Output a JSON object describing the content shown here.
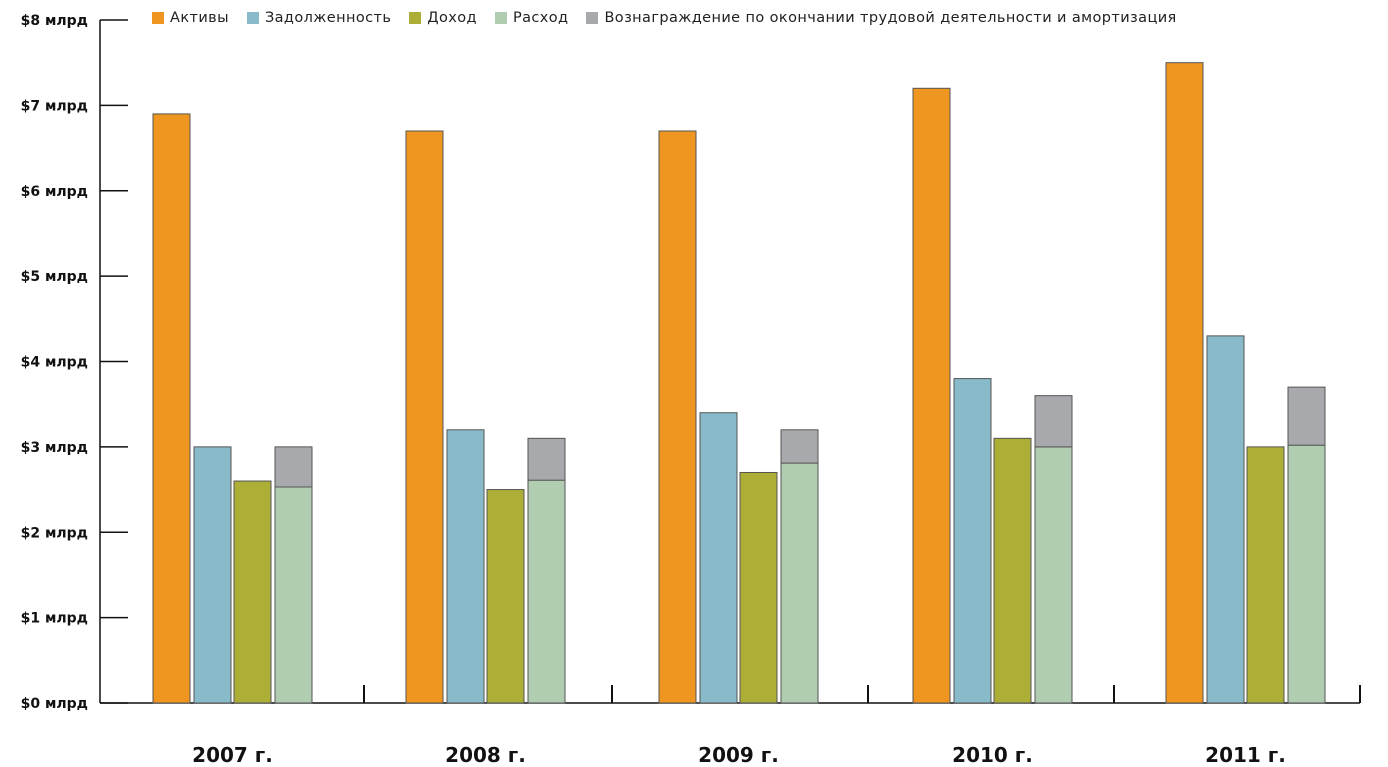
{
  "chart_data": {
    "type": "bar",
    "title": "",
    "xlabel": "",
    "ylabel": "",
    "categories": [
      "2007 г.",
      "2008 г.",
      "2009 г.",
      "2010 г.",
      "2011 г."
    ],
    "ylim": [
      0,
      8
    ],
    "yticks": [
      "$0 млрд",
      "$1 млрд",
      "$2 млрд",
      "$3 млрд",
      "$4 млрд",
      "$5 млрд",
      "$6 млрд",
      "$7 млрд",
      "$8 млрд"
    ],
    "legend_position": "top",
    "grid": false,
    "series": [
      {
        "name": "Активы",
        "color": "#EE961F",
        "values": [
          6.9,
          6.7,
          6.7,
          7.2,
          7.5
        ]
      },
      {
        "name": "Задолженность",
        "color": "#88BACA",
        "values": [
          3.0,
          3.2,
          3.4,
          3.8,
          4.3
        ]
      },
      {
        "name": "Доход",
        "color": "#ADAE36",
        "values": [
          2.6,
          2.5,
          2.7,
          3.1,
          3.0
        ]
      },
      {
        "name": "Расход",
        "color": "#B0CDB2",
        "values": [
          2.53,
          2.61,
          2.81,
          3.0,
          3.02
        ],
        "stacked_group": "expense"
      },
      {
        "name": "Вознаграждение по окончании трудовой деятельности и амортизация",
        "color": "#A8A9AD",
        "values": [
          0.47,
          0.49,
          0.39,
          0.6,
          0.68
        ],
        "stacked_group": "expense"
      }
    ]
  }
}
